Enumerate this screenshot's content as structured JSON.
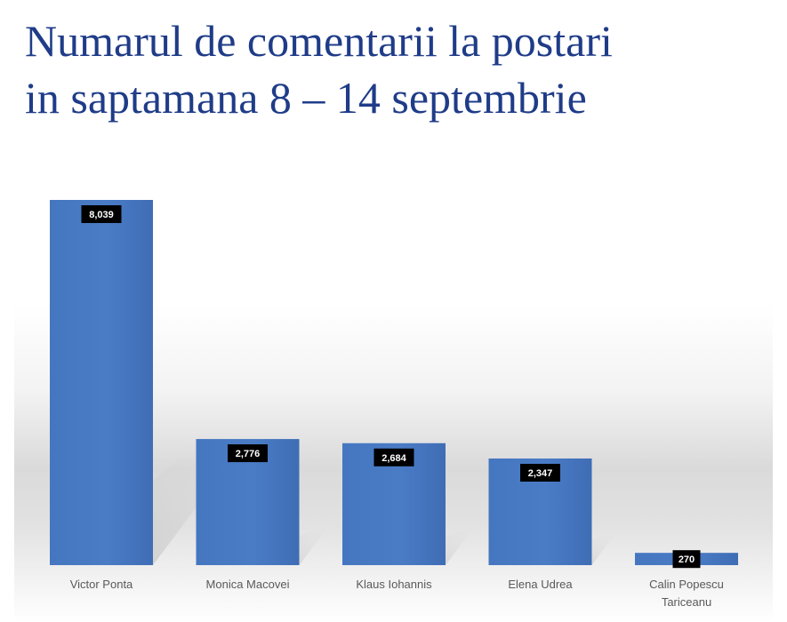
{
  "title": {
    "line1": "Numarul de comentarii la postari",
    "line2": "in saptamana 8 – 14 septembrie"
  },
  "colors": {
    "title": "#1f3c88",
    "bar": "#4a7cc6",
    "label_box": "#000000",
    "label_text": "#ffffff"
  },
  "chart_data": {
    "type": "bar",
    "categories": [
      [
        "Victor Ponta"
      ],
      [
        "Monica Macovei"
      ],
      [
        "Klaus Iohannis"
      ],
      [
        "Elena Udrea"
      ],
      [
        "Calin Popescu",
        "Tariceanu"
      ]
    ],
    "values": [
      8039,
      2776,
      2684,
      2347,
      270
    ],
    "value_labels": [
      "8,039",
      "2,776",
      "2,684",
      "2,347",
      "270"
    ],
    "title": "Numarul de comentarii la postari in saptamana 8 – 14 septembrie",
    "xlabel": "",
    "ylabel": "",
    "ylim": [
      0,
      8039
    ],
    "grid": false,
    "legend": "none"
  }
}
